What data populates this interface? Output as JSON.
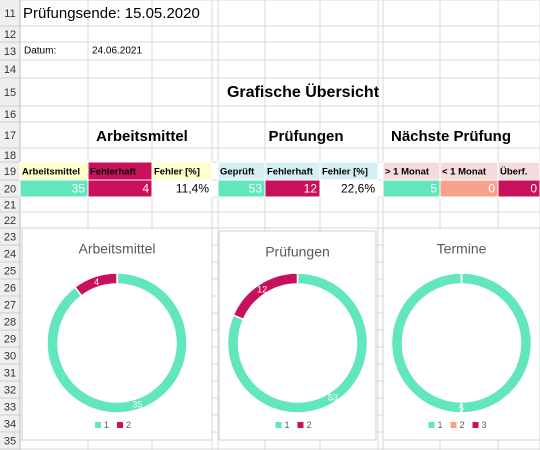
{
  "sheet": {
    "row_numbers": [
      11,
      12,
      13,
      14,
      15,
      16,
      17,
      18,
      19,
      20,
      21,
      22,
      23,
      24,
      25,
      26,
      27,
      28,
      29,
      30,
      31,
      32,
      33,
      34,
      35
    ],
    "exam_end": "Prüfungsende: 15.05.2020",
    "date_label": "Datum:",
    "date": "24.06.2021",
    "overview_title": "Grafische Übersicht",
    "sections": [
      "Arbeitsmittel",
      "Prüfungen",
      "Nächste Prüfung"
    ],
    "headers": [
      "Arbeitsmittel",
      "Fehlerhaft",
      "Fehler [%]",
      "Geprüft",
      "Fehlerhaft",
      "Fehler [%]",
      "> 1 Monat",
      "< 1 Monat",
      "Überf."
    ],
    "values": [
      35,
      4,
      "11,4%",
      53,
      12,
      "22,6%",
      5,
      0,
      0
    ]
  },
  "chart_data": [
    {
      "type": "pie",
      "donut": true,
      "title": "Arbeitsmittel",
      "categories": [
        "1",
        "2"
      ],
      "values": [
        35,
        4
      ],
      "colors": [
        "#62e6be",
        "#c8105c"
      ]
    },
    {
      "type": "pie",
      "donut": true,
      "title": "Prüfungen",
      "categories": [
        "1",
        "2"
      ],
      "values": [
        53,
        12
      ],
      "colors": [
        "#62e6be",
        "#c8105c"
      ]
    },
    {
      "type": "pie",
      "donut": true,
      "title": "Termine",
      "categories": [
        "1",
        "2",
        "3"
      ],
      "values": [
        5,
        0,
        0
      ],
      "colors": [
        "#62e6be",
        "#f6a38b",
        "#c8105c"
      ]
    }
  ]
}
